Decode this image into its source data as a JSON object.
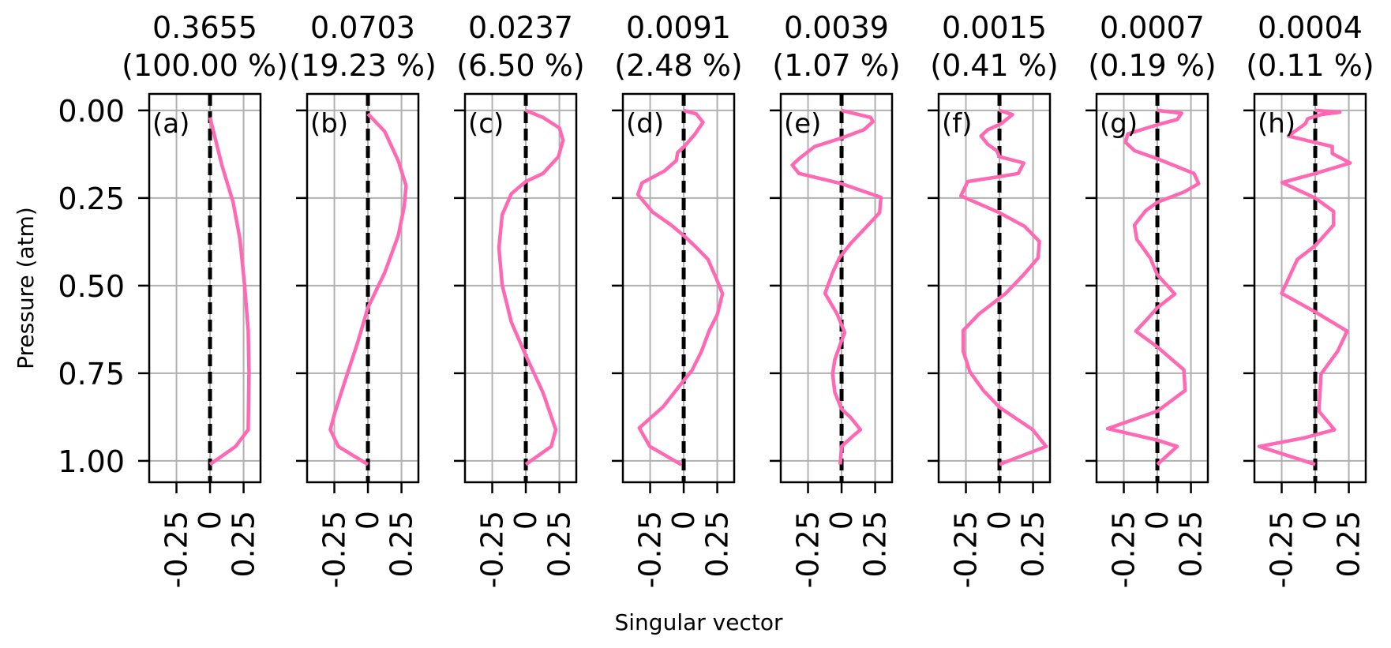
{
  "chart_data": {
    "type": "line",
    "orientation": "vertical-profiles",
    "xlabel": "Singular vector",
    "ylabel": "Pressure (atm)",
    "xlim": [
      -0.453,
      0.376
    ],
    "ylim": [
      1.061,
      -0.047
    ],
    "xticks": [
      -0.25,
      0,
      0.25
    ],
    "xtick_labels": [
      "-0.25",
      "0",
      "0.25"
    ],
    "yticks": [
      0,
      0.25,
      0.5,
      0.75,
      1.0
    ],
    "ytick_labels": [
      "0.00",
      "0.25",
      "0.50",
      "0.75",
      "1.00"
    ],
    "grid": true,
    "line_color": "#ff69b4",
    "zero_line_color": "#000000",
    "grid_color": "#b0b0b0",
    "panels": [
      {
        "label": "(a)",
        "title": "0.3655",
        "subtitle": "(100.00 %)",
        "x": [
          0,
          0.088,
          0.172,
          0.223,
          0.257,
          0.284,
          0.29,
          0.284,
          0.19,
          0
        ],
        "p": [
          0.02,
          0.156,
          0.262,
          0.368,
          0.498,
          0.628,
          0.746,
          0.911,
          0.959,
          1.01
        ]
      },
      {
        "label": "(b)",
        "title": "0.0703",
        "subtitle": "(19.23 %)",
        "x": [
          0,
          0.125,
          0.226,
          0.284,
          0.27,
          0.226,
          0.125,
          0,
          -0.078,
          -0.179,
          -0.247,
          -0.28,
          -0.22,
          0
        ],
        "p": [
          0.01,
          0.06,
          0.144,
          0.215,
          0.274,
          0.357,
          0.463,
          0.563,
          0.664,
          0.782,
          0.864,
          0.911,
          0.959,
          1.01
        ]
      },
      {
        "label": "(c)",
        "title": "0.0237",
        "subtitle": "(6.50 %)",
        "x": [
          0,
          0.128,
          0.25,
          0.277,
          0.243,
          0.128,
          0,
          -0.108,
          -0.176,
          -0.2,
          -0.176,
          -0.108,
          0,
          0.128,
          0.223,
          0.189,
          0
        ],
        "p": [
          0,
          0.02,
          0.05,
          0.085,
          0.132,
          0.18,
          0.203,
          0.238,
          0.298,
          0.392,
          0.498,
          0.604,
          0.699,
          0.805,
          0.911,
          0.959,
          1.01
        ]
      },
      {
        "label": "(d)",
        "title": "0.0091",
        "subtitle": "(2.48 %)",
        "x": [
          0,
          0.094,
          0.144,
          0.083,
          0,
          -0.045,
          -0.055,
          -0.144,
          -0.311,
          -0.341,
          -0.232,
          -0.094,
          0,
          0.083,
          0.181,
          0.24,
          0.289,
          0.25,
          0.191,
          0.132,
          0.063,
          0,
          -0.154,
          -0.331,
          -0.252,
          -0.016
        ],
        "p": [
          0,
          0.01,
          0.034,
          0.068,
          0.105,
          0.12,
          0.143,
          0.173,
          0.207,
          0.24,
          0.29,
          0.327,
          0.357,
          0.387,
          0.425,
          0.477,
          0.523,
          0.583,
          0.628,
          0.688,
          0.741,
          0.771,
          0.846,
          0.906,
          0.959,
          1.011
        ]
      },
      {
        "label": "(e)",
        "title": "0.0039",
        "subtitle": "(1.07 %)",
        "x": [
          0,
          0.217,
          0.233,
          0.167,
          0,
          -0.2,
          -0.317,
          -0.367,
          -0.317,
          0,
          0.293,
          0.283,
          0.183,
          0.067,
          -0.017,
          -0.067,
          -0.123,
          -0.033,
          0.023,
          -0.007,
          -0.05,
          -0.067,
          -0.05,
          0,
          0.067,
          0.14,
          0.067,
          0,
          -0.01
        ],
        "p": [
          0,
          0.02,
          0.032,
          0.055,
          0.079,
          0.103,
          0.138,
          0.156,
          0.18,
          0.209,
          0.248,
          0.292,
          0.333,
          0.38,
          0.421,
          0.463,
          0.522,
          0.581,
          0.634,
          0.664,
          0.711,
          0.752,
          0.805,
          0.852,
          0.876,
          0.911,
          0.935,
          0.959,
          1.01
        ]
      },
      {
        "label": "(f)",
        "title": "0.0015",
        "subtitle": "(0.41 %)",
        "x": [
          0,
          0.097,
          0.013,
          -0.087,
          -0.137,
          -0.087,
          -0.02,
          0,
          0.18,
          0.14,
          0,
          -0.237,
          -0.287,
          0,
          0.187,
          0.297,
          0.287,
          0.18,
          0.047,
          0,
          -0.153,
          -0.27,
          -0.27,
          -0.22,
          -0.12,
          0,
          0.247,
          0.347,
          0
        ],
        "p": [
          0,
          0.012,
          0.038,
          0.055,
          0.073,
          0.097,
          0.115,
          0.132,
          0.15,
          0.18,
          0.189,
          0.203,
          0.244,
          0.292,
          0.331,
          0.374,
          0.421,
          0.469,
          0.522,
          0.536,
          0.581,
          0.628,
          0.687,
          0.746,
          0.799,
          0.847,
          0.911,
          0.959,
          1.01
        ]
      },
      {
        "label": "(g)",
        "title": "0.0007",
        "subtitle": "(0.19 %)",
        "x": [
          0,
          0.18,
          0.147,
          0,
          -0.22,
          -0.237,
          -0.17,
          0,
          0.273,
          0.307,
          0.197,
          0,
          -0.087,
          -0.17,
          -0.153,
          -0.053,
          0,
          0.13,
          0,
          -0.07,
          -0.16,
          0,
          0.197,
          0.207,
          0,
          -0.37,
          0,
          0.147,
          0
        ],
        "p": [
          0,
          0.008,
          0.026,
          0.041,
          0.067,
          0.091,
          0.115,
          0.138,
          0.18,
          0.209,
          0.233,
          0.262,
          0.286,
          0.327,
          0.368,
          0.421,
          0.469,
          0.524,
          0.563,
          0.593,
          0.63,
          0.675,
          0.74,
          0.799,
          0.858,
          0.908,
          0.941,
          0.959,
          1.01
        ]
      },
      {
        "label": "(h)",
        "title": "0.0004",
        "subtitle": "(0.11 %)",
        "x": [
          0,
          0.183,
          0.043,
          -0.057,
          -0.073,
          -0.2,
          -0.007,
          0.127,
          0.127,
          0.26,
          0,
          -0.247,
          0,
          0.137,
          0.137,
          0,
          -0.133,
          -0.25,
          0,
          0.237,
          0.167,
          0.043,
          0.027,
          0.143,
          -0.09,
          -0.417,
          0
        ],
        "p": [
          0,
          0.005,
          0.012,
          0.024,
          0.038,
          0.073,
          0.091,
          0.103,
          0.123,
          0.15,
          0.18,
          0.206,
          0.25,
          0.288,
          0.327,
          0.386,
          0.425,
          0.522,
          0.575,
          0.63,
          0.687,
          0.752,
          0.858,
          0.911,
          0.935,
          0.959,
          1.01
        ]
      }
    ]
  }
}
